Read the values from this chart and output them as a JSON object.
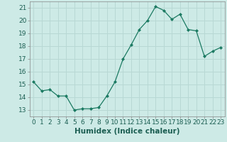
{
  "x": [
    0,
    1,
    2,
    3,
    4,
    5,
    6,
    7,
    8,
    9,
    10,
    11,
    12,
    13,
    14,
    15,
    16,
    17,
    18,
    19,
    20,
    21,
    22,
    23
  ],
  "y": [
    15.2,
    14.5,
    14.6,
    14.1,
    14.1,
    13.0,
    13.1,
    13.1,
    13.2,
    14.1,
    15.2,
    17.0,
    18.1,
    19.3,
    20.0,
    21.1,
    20.8,
    20.1,
    20.5,
    19.3,
    19.2,
    17.2,
    17.6,
    17.9
  ],
  "xlabel": "Humidex (Indice chaleur)",
  "ylim": [
    12.5,
    21.5
  ],
  "xlim": [
    -0.5,
    23.5
  ],
  "yticks": [
    13,
    14,
    15,
    16,
    17,
    18,
    19,
    20,
    21
  ],
  "xticks": [
    0,
    1,
    2,
    3,
    4,
    5,
    6,
    7,
    8,
    9,
    10,
    11,
    12,
    13,
    14,
    15,
    16,
    17,
    18,
    19,
    20,
    21,
    22,
    23
  ],
  "line_color": "#1b7a62",
  "marker_color": "#1b7a62",
  "bg_color": "#cdeae6",
  "grid_color": "#b8d8d4",
  "xlabel_fontsize": 7.5,
  "tick_fontsize": 6.5
}
